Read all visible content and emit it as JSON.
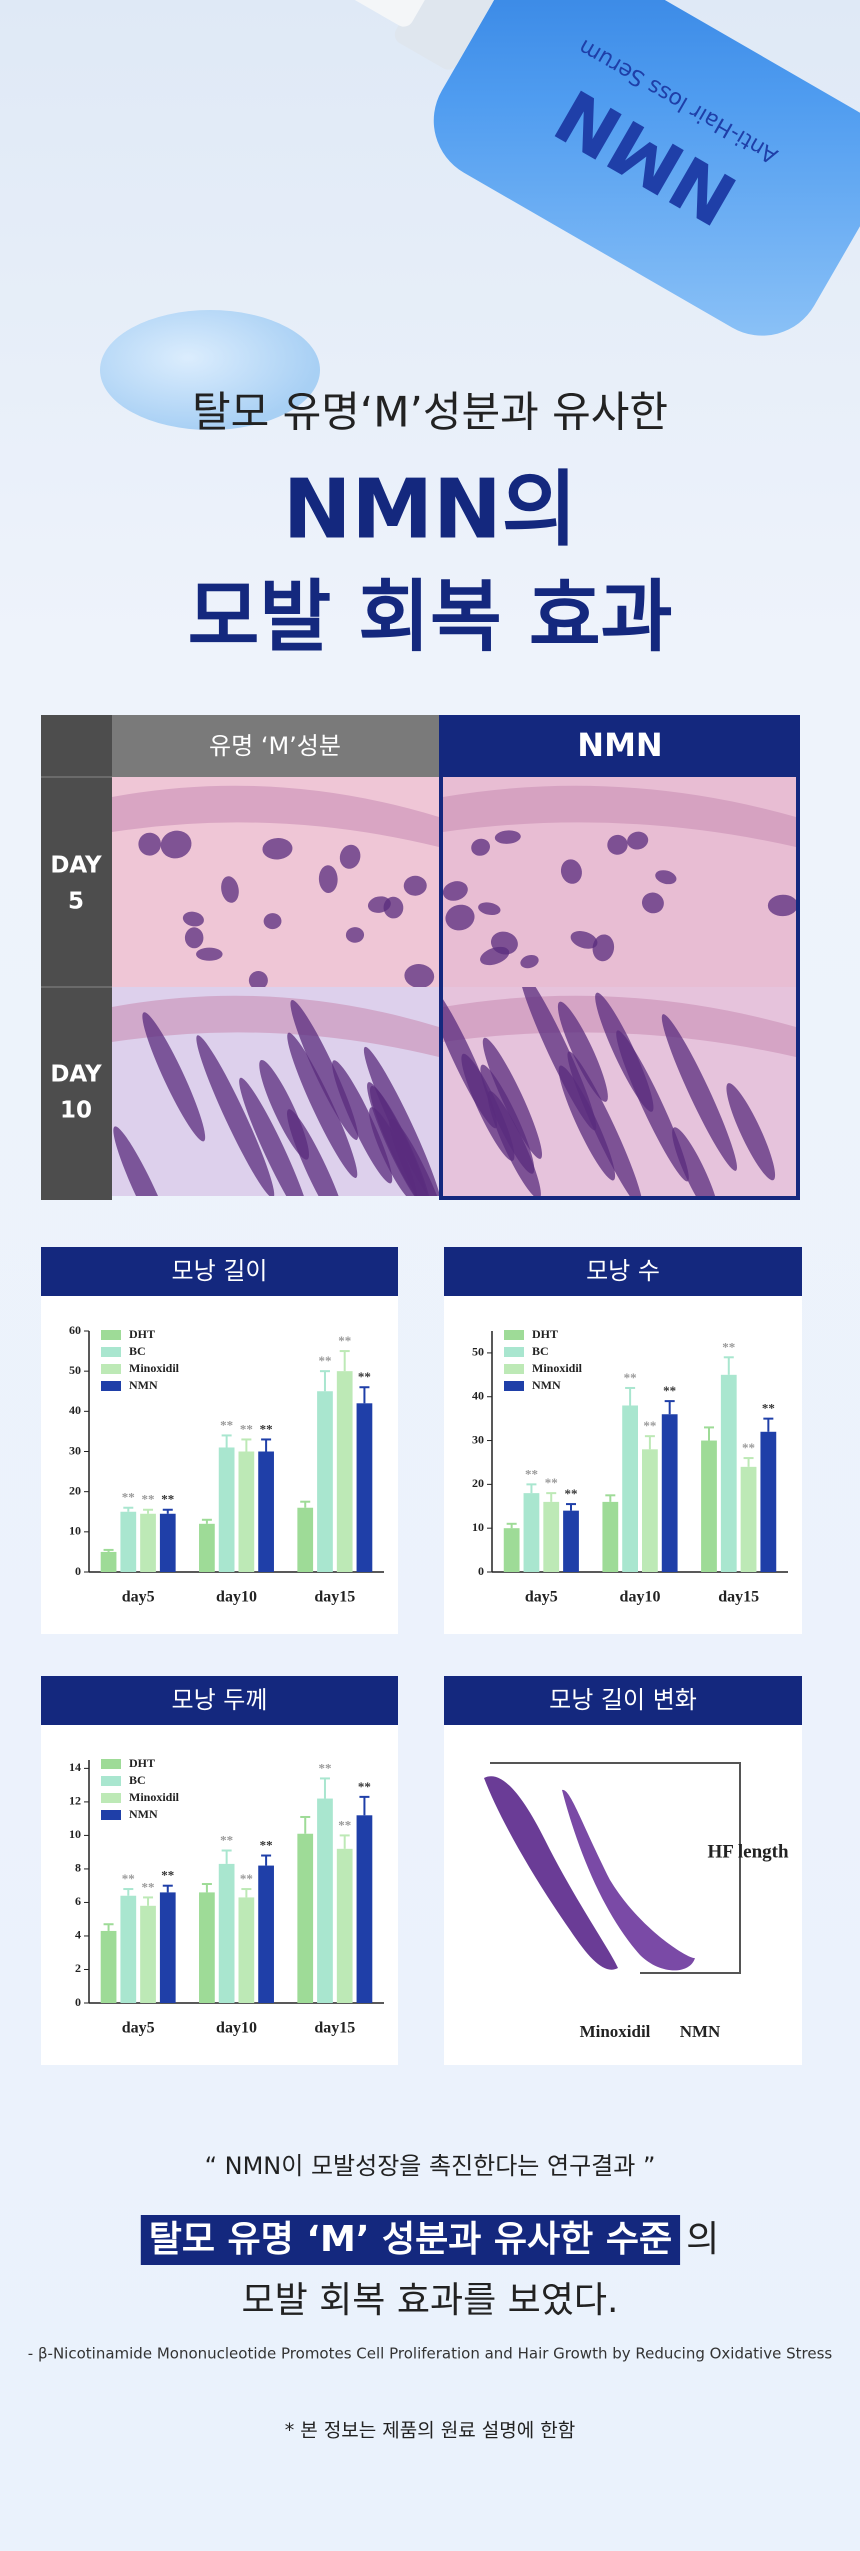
{
  "hero": {
    "product_name": "NMN",
    "product_desc": "Anti-Hair loss Serum"
  },
  "header": {
    "subtitle": "탈모 유명‘M’성분과 유사한",
    "title_lines": [
      "NMN의",
      "모발 회복 효과"
    ]
  },
  "comparison": {
    "columns": [
      "유명 ‘M’성분",
      "NMN"
    ],
    "rows": [
      {
        "day": "DAY",
        "num": "5"
      },
      {
        "day": "DAY",
        "num": "10"
      }
    ]
  },
  "chart_data": [
    {
      "type": "bar",
      "title": "모낭 길이",
      "categories": [
        "day5",
        "day10",
        "day15"
      ],
      "ylim": [
        0,
        60
      ],
      "yticks": [
        0,
        10,
        20,
        30,
        40,
        50,
        60
      ],
      "series": [
        {
          "name": "DHT",
          "color": "#9edb97",
          "values": [
            5,
            12,
            16
          ],
          "errors": [
            0.5,
            1,
            1.5
          ],
          "significance": [
            null,
            null,
            null
          ]
        },
        {
          "name": "BC",
          "color": "#a9e6cf",
          "values": [
            15,
            31,
            45
          ],
          "errors": [
            1,
            3,
            5
          ],
          "significance": [
            "**",
            "**",
            "**"
          ]
        },
        {
          "name": "Minoxidil",
          "color": "#bde9b6",
          "values": [
            14.5,
            30,
            50
          ],
          "errors": [
            1,
            3,
            5
          ],
          "significance": [
            "**",
            "**",
            "**"
          ]
        },
        {
          "name": "NMN",
          "color": "#1f3fa8",
          "values": [
            14.5,
            30,
            42
          ],
          "errors": [
            1,
            3,
            4
          ],
          "significance": [
            "**",
            "**",
            "**"
          ]
        }
      ]
    },
    {
      "type": "bar",
      "title": "모낭 수",
      "categories": [
        "day5",
        "day10",
        "day15"
      ],
      "ylim": [
        0,
        55
      ],
      "yticks": [
        0,
        10,
        20,
        30,
        40,
        50
      ],
      "series": [
        {
          "name": "DHT",
          "color": "#9edb97",
          "values": [
            10,
            16,
            30
          ],
          "errors": [
            1,
            1.5,
            3
          ],
          "significance": [
            null,
            null,
            null
          ]
        },
        {
          "name": "BC",
          "color": "#a9e6cf",
          "values": [
            18,
            38,
            45
          ],
          "errors": [
            2,
            4,
            4
          ],
          "significance": [
            "**",
            "**",
            "**"
          ]
        },
        {
          "name": "Minoxidil",
          "color": "#bde9b6",
          "values": [
            16,
            28,
            24
          ],
          "errors": [
            2,
            3,
            2
          ],
          "significance": [
            "**",
            "**",
            "**"
          ]
        },
        {
          "name": "NMN",
          "color": "#1f3fa8",
          "values": [
            14,
            36,
            32
          ],
          "errors": [
            1.5,
            3,
            3
          ],
          "significance": [
            "**",
            "**",
            "**"
          ]
        }
      ]
    },
    {
      "type": "bar",
      "title": "모낭 두께",
      "categories": [
        "day5",
        "day10",
        "day15"
      ],
      "ylim": [
        0,
        14.5
      ],
      "yticks": [
        0,
        2,
        4,
        6,
        8,
        10,
        12,
        14
      ],
      "series": [
        {
          "name": "DHT",
          "color": "#9edb97",
          "values": [
            4.3,
            6.6,
            10.1
          ],
          "errors": [
            0.4,
            0.5,
            1
          ],
          "significance": [
            null,
            null,
            null
          ]
        },
        {
          "name": "BC",
          "color": "#a9e6cf",
          "values": [
            6.4,
            8.3,
            12.2
          ],
          "errors": [
            0.4,
            0.8,
            1.2
          ],
          "significance": [
            "**",
            "**",
            "**"
          ]
        },
        {
          "name": "Minoxidil",
          "color": "#bde9b6",
          "values": [
            5.8,
            6.3,
            9.2
          ],
          "errors": [
            0.5,
            0.5,
            0.8
          ],
          "significance": [
            "**",
            "**",
            "**"
          ]
        },
        {
          "name": "NMN",
          "color": "#1f3fa8",
          "values": [
            6.6,
            8.2,
            11.2
          ],
          "errors": [
            0.4,
            0.6,
            1.1
          ],
          "significance": [
            "**",
            "**",
            "**"
          ]
        }
      ]
    }
  ],
  "diagram": {
    "title": "모낭 길이 변화",
    "measure_label": "HF length",
    "labels": [
      "Minoxidil",
      "NMN"
    ]
  },
  "conclusion": {
    "quote": "“ NMN이 모발성장을 촉진한다는 연구결과 ”",
    "highlight": "탈모 유명 ‘M’ 성분과 유사한 수준",
    "highlight_suffix": "의",
    "line2": "모발 회복 효과를 보였다.",
    "citation": "- β-Nicotinamide Mononucleotide Promotes Cell Proliferation and Hair Growth by Reducing Oxidative Stress",
    "footnote": "* 본 정보는 제품의 원료 설명에 한함"
  }
}
